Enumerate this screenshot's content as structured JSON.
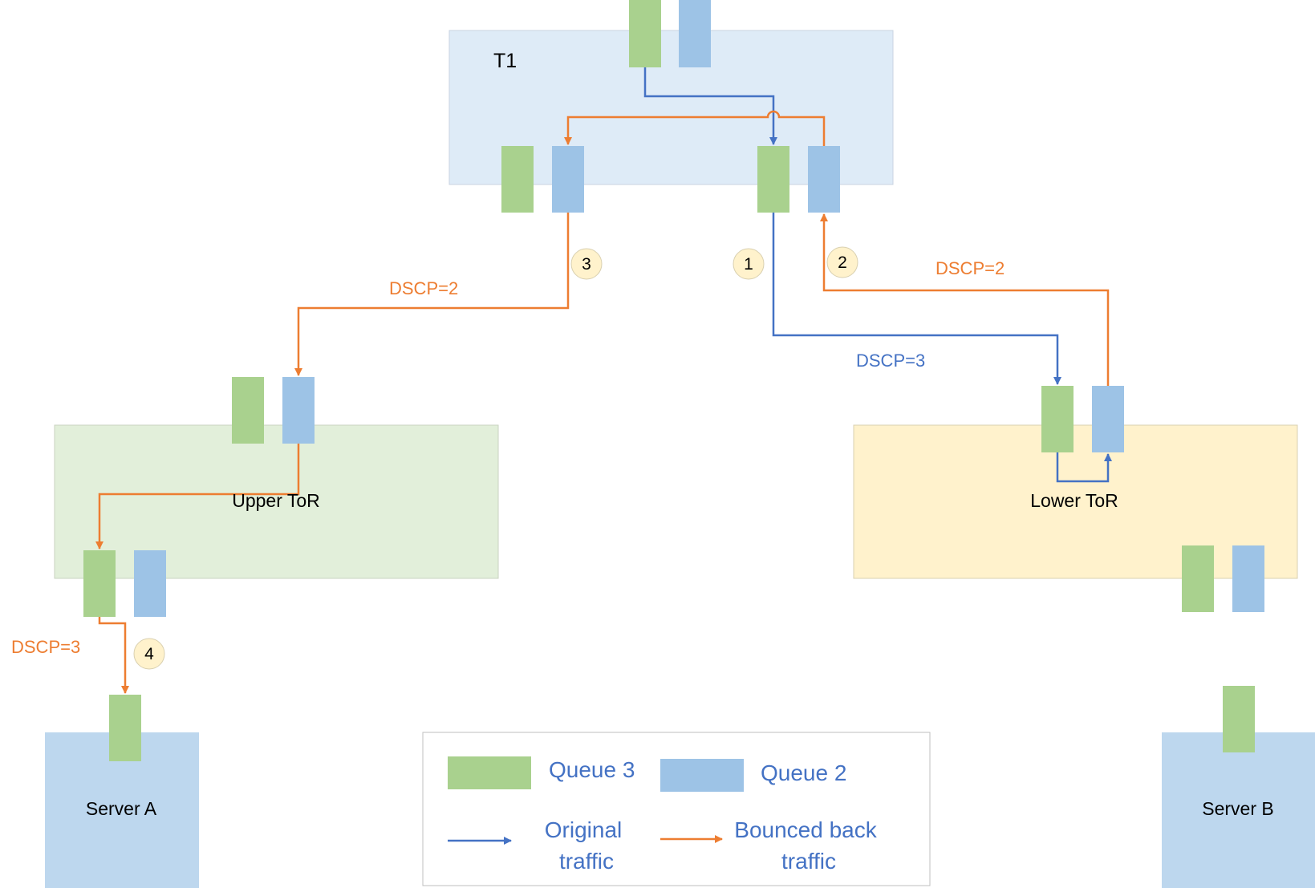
{
  "colors": {
    "queue3": "#A9D18E",
    "queue2": "#9DC3E6",
    "original": "#4472C4",
    "bounced": "#ED7D31",
    "t1_bg": "#DEEBF7",
    "upper_tor_bg": "#E2EFDA",
    "lower_tor_bg": "#FFF2CC",
    "server_bg": "#BDD7EE",
    "badge_bg": "#FFF2CC"
  },
  "nodes": {
    "t1": "T1",
    "upper_tor": "Upper ToR",
    "lower_tor": "Lower ToR",
    "server_a": "Server A",
    "server_b": "Server B"
  },
  "labels": {
    "dscp_step3": "DSCP=2",
    "dscp_step2": "DSCP=2",
    "dscp_step1": "DSCP=3",
    "dscp_step4": "DSCP=3"
  },
  "steps": [
    "1",
    "2",
    "3",
    "4"
  ],
  "legend": {
    "queue3": "Queue 3",
    "queue2": "Queue 2",
    "original_line1": "Original",
    "original_line2": "traffic",
    "bounced_line1": "Bounced back",
    "bounced_line2": "traffic"
  }
}
